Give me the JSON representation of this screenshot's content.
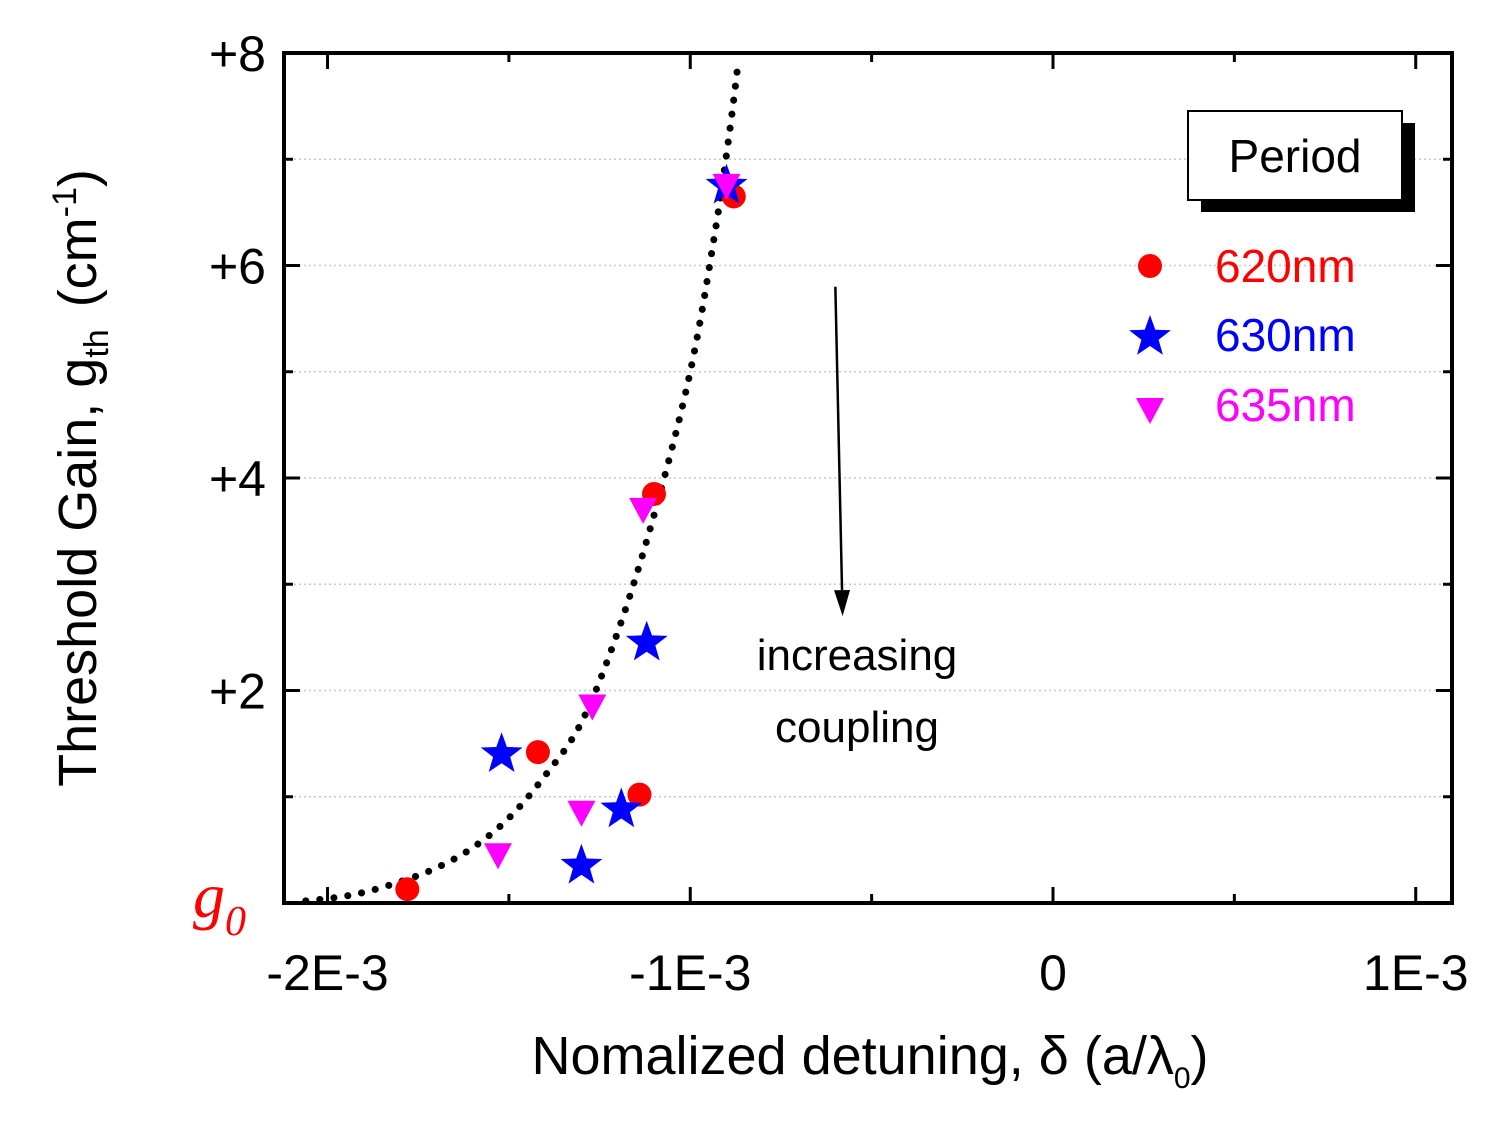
{
  "chart_data": {
    "type": "scatter",
    "title": "",
    "xlabel_main": "Nomalized detuning, δ (a/λ",
    "xlabel_sub": "0",
    "xlabel_end": ")",
    "ylabel_main": "Threshold Gain, g",
    "ylabel_sub": "th",
    "ylabel_unit": "(cm",
    "ylabel_sup": "-1",
    "ylabel_end": ")",
    "xlim": [
      -0.00212,
      0.0011
    ],
    "ylim": [
      0,
      8
    ],
    "x_ticks": [
      -0.002,
      -0.001,
      0,
      0.001
    ],
    "x_tick_labels": [
      "-2E-3",
      "-1E-3",
      "0",
      "1E-3"
    ],
    "y_ticks": [
      2,
      4,
      6,
      8
    ],
    "y_tick_labels": [
      "+2",
      "+4",
      "+6",
      "+8"
    ],
    "grid": "horizontal dotted",
    "baseline_label": "g",
    "baseline_sub": "0",
    "legend": {
      "title": "Period",
      "placement": "top-right",
      "entries": [
        "620nm",
        "630nm",
        "635nm"
      ]
    },
    "series": [
      {
        "name": "620nm",
        "marker": "circle",
        "color": "#ff0000",
        "points": [
          [
            -0.00178,
            0.13
          ],
          [
            -0.00142,
            1.42
          ],
          [
            -0.00114,
            1.02
          ],
          [
            -0.0011,
            3.85
          ],
          [
            -0.00088,
            6.65
          ]
        ]
      },
      {
        "name": "630nm",
        "marker": "star",
        "color": "#0000ff",
        "points": [
          [
            -0.00152,
            1.4
          ],
          [
            -0.0013,
            0.35
          ],
          [
            -0.00119,
            0.88
          ],
          [
            -0.00112,
            2.45
          ],
          [
            -0.0009,
            6.75
          ]
        ]
      },
      {
        "name": "635nm",
        "marker": "triangle-down",
        "color": "#ff00ff",
        "points": [
          [
            -0.00153,
            0.45
          ],
          [
            -0.0013,
            0.85
          ],
          [
            -0.00127,
            1.85
          ],
          [
            -0.00113,
            3.7
          ],
          [
            -0.0009,
            6.75
          ]
        ]
      }
    ],
    "fit_curve": {
      "style": "dotted",
      "color": "#000000",
      "points": [
        [
          -0.00206,
          0.02
        ],
        [
          -0.00198,
          0.05
        ],
        [
          -0.0019,
          0.1
        ],
        [
          -0.0018,
          0.2
        ],
        [
          -0.0017,
          0.33
        ],
        [
          -0.0016,
          0.52
        ],
        [
          -0.0015,
          0.8
        ],
        [
          -0.0014,
          1.2
        ],
        [
          -0.0013,
          1.7
        ],
        [
          -0.0012,
          2.55
        ],
        [
          -0.0011,
          3.65
        ],
        [
          -0.001,
          5.0
        ],
        [
          -0.00093,
          6.35
        ],
        [
          -0.00089,
          7.3
        ],
        [
          -0.00087,
          7.85
        ]
      ]
    },
    "annotation": {
      "text_line1": "increasing",
      "text_line2": "coupling",
      "arrow_from": [
        -0.0006,
        5.8
      ],
      "arrow_to": [
        -0.00058,
        2.7
      ]
    }
  }
}
